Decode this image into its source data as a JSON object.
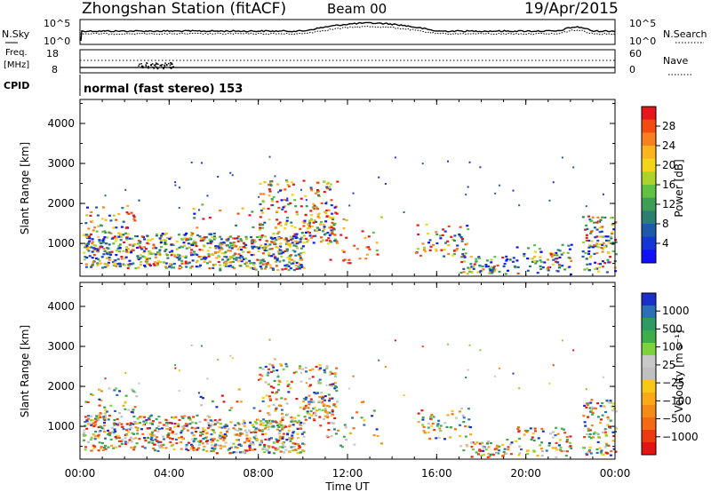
{
  "header": {
    "station": "Zhongshan Station (fitACF)",
    "beam": "Beam 00",
    "date": "19/Apr/2015"
  },
  "noise_panel": {
    "left_label": "N.Sky",
    "left_ticks": [
      "10^5",
      "10^0"
    ],
    "right_label": "N.Search",
    "right_ticks": [
      "10^5",
      "10^0"
    ]
  },
  "freq_panel": {
    "left_label_1": "Freq.",
    "left_label_2": "[MHz]",
    "left_ticks": [
      "18",
      "8"
    ],
    "right_label": "Nave",
    "right_ticks": [
      "60",
      "0"
    ],
    "cpid_label": "CPID",
    "cpid_text": "normal (fast stereo) 153"
  },
  "chart_data": [
    {
      "type": "heatmap",
      "title": "",
      "xlabel": "Time UT",
      "ylabel": "Slant Range [km]",
      "x_range": [
        "00:00",
        "24:00"
      ],
      "ylim": [
        180,
        4600
      ],
      "y_ticks": [
        1000,
        2000,
        3000,
        4000
      ],
      "colorbar": {
        "label": "Power [dB]",
        "ticks": [
          "28",
          "24",
          "20",
          "16",
          "12",
          "8",
          "4"
        ],
        "colors": [
          "#e5161c",
          "#f24b12",
          "#f98020",
          "#fbb41e",
          "#f2d418",
          "#aed22c",
          "#62c043",
          "#3d9e55",
          "#2b7e70",
          "#1f5aa8",
          "#1536d6",
          "#1010ff"
        ]
      }
    },
    {
      "type": "heatmap",
      "title": "",
      "xlabel": "Time UT",
      "ylabel": "Slant Range [km]",
      "x_range": [
        "00:00",
        "24:00"
      ],
      "ylim": [
        180,
        4600
      ],
      "y_ticks": [
        1000,
        2000,
        3000,
        4000
      ],
      "colorbar": {
        "label": "Velocity [m s⁻¹]",
        "ticks": [
          "1000",
          "500",
          "100",
          "25",
          "−25",
          "−100",
          "−500",
          "−1000"
        ],
        "colors": [
          "#1a30c8",
          "#2b6fb8",
          "#2f9a62",
          "#3fae4a",
          "#7ed23d",
          "#c8c8c8",
          "#c0c0c0",
          "#f8c818",
          "#f8a818",
          "#f58a17",
          "#f26a12",
          "#ec3b12",
          "#e51414"
        ]
      }
    }
  ],
  "x_ticks": [
    "00:00",
    "04:00",
    "08:00",
    "12:00",
    "16:00",
    "20:00",
    "00:00"
  ],
  "x_axis_label": "Time UT"
}
